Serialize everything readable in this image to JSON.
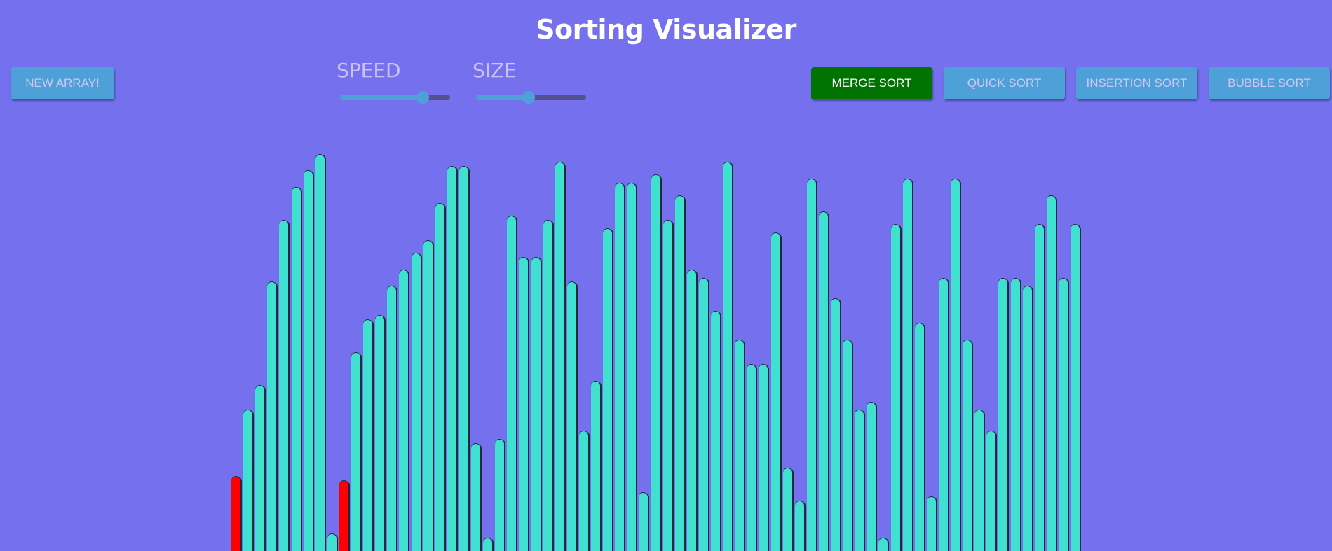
{
  "header": {
    "title": "Sorting Visualizer"
  },
  "controls": {
    "new_array_label": "NEW ARRAY!",
    "speed": {
      "label": "SPEED",
      "level": 0.75
    },
    "size": {
      "label": "SIZE",
      "level": 0.48
    }
  },
  "algorithms": [
    {
      "label": "MERGE SORT",
      "active": true
    },
    {
      "label": "QUICK SORT",
      "active": false
    },
    {
      "label": "INSERTION SORT",
      "active": false
    },
    {
      "label": "BUBBLE SORT",
      "active": false
    }
  ],
  "colors": {
    "background": "#7470ee",
    "bar": "#40e0d0",
    "bar_highlight": "#ff0000",
    "button": "#4ea0d8",
    "button_active": "#007300"
  },
  "array": {
    "max_value": 100,
    "values": [
      18,
      34,
      40,
      65,
      80,
      88,
      92,
      96,
      4,
      17,
      48,
      56,
      57,
      64,
      68,
      72,
      75,
      84,
      93,
      93,
      26,
      3,
      27,
      81,
      71,
      71,
      80,
      94,
      65,
      29,
      41,
      78,
      89,
      89,
      14,
      91,
      80,
      86,
      68,
      66,
      58,
      94,
      51,
      45,
      45,
      77,
      20,
      12,
      90,
      82,
      61,
      51,
      34,
      36,
      3,
      79,
      90,
      55,
      13,
      66,
      90,
      51,
      34,
      29,
      66,
      66,
      64,
      79,
      86,
      66,
      79
    ],
    "highlighted": [
      0,
      9
    ]
  }
}
